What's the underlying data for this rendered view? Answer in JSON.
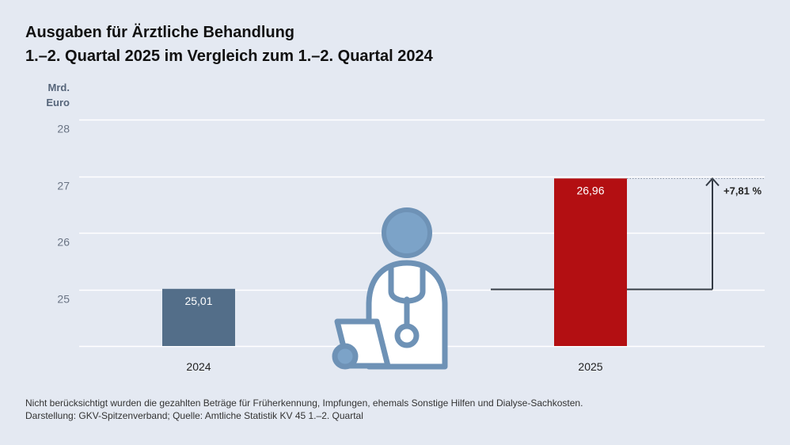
{
  "title": {
    "line1": "Ausgaben für Ärztliche Behandlung",
    "line2": "1.–2. Quartal 2025 im Vergleich zum 1.–2. Quartal 2024"
  },
  "unit_label": [
    "Mrd.",
    "Euro"
  ],
  "icon": "doctor-with-stethoscope-and-clipboard-icon",
  "chart_data": {
    "type": "bar",
    "categories": [
      "2024",
      "2025"
    ],
    "values": [
      25.01,
      26.96
    ],
    "value_labels": [
      "25,01",
      "26,96"
    ],
    "yticks": [
      25,
      26,
      27,
      28
    ],
    "ylim": [
      24,
      28
    ],
    "grid": true,
    "colors": [
      "#536e89",
      "#b30f12"
    ],
    "annotation": "+7,81 %"
  },
  "footnote": {
    "line1": "Nicht berücksichtigt wurden die gezahlten Beträge für Früherkennung, Impfungen, ehemals Sonstige Hilfen und Dialyse-Sachkosten.",
    "line2": "Darstellung: GKV-Spitzenverband; Quelle: Amtliche Statistik KV 45 1.–2. Quartal"
  }
}
